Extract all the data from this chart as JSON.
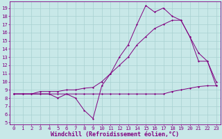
{
  "background_color": "#c8e8e8",
  "line_color": "#800080",
  "grid_color": "#a8d0d0",
  "xlabel": "Windchill (Refroidissement éolien,°C)",
  "xlabel_fontsize": 6,
  "tick_fontsize": 5.2,
  "xlim": [
    -0.5,
    23.5
  ],
  "ylim": [
    4.8,
    19.8
  ],
  "yticks": [
    5,
    6,
    7,
    8,
    9,
    10,
    11,
    12,
    13,
    14,
    15,
    16,
    17,
    18,
    19
  ],
  "xticks": [
    0,
    1,
    2,
    3,
    4,
    5,
    6,
    7,
    8,
    9,
    10,
    11,
    12,
    13,
    14,
    15,
    16,
    17,
    18,
    19,
    20,
    21,
    22,
    23
  ],
  "hours": [
    0,
    1,
    2,
    3,
    4,
    5,
    6,
    7,
    8,
    9,
    10,
    11,
    12,
    13,
    14,
    15,
    16,
    17,
    18,
    19,
    20,
    21,
    22,
    23
  ],
  "line_zigzag": [
    8.5,
    8.5,
    8.5,
    8.5,
    8.5,
    8.0,
    8.5,
    8.0,
    6.5,
    5.5,
    9.5,
    11.0,
    13.0,
    14.5,
    17.0,
    19.3,
    18.5,
    19.0,
    18.0,
    17.5,
    15.5,
    12.5,
    12.5,
    9.5
  ],
  "line_flat": [
    8.5,
    8.5,
    8.5,
    8.5,
    8.5,
    8.5,
    8.5,
    8.5,
    8.5,
    8.5,
    8.5,
    8.5,
    8.5,
    8.5,
    8.5,
    8.5,
    8.5,
    8.5,
    8.8,
    9.0,
    9.2,
    9.4,
    9.5,
    9.5
  ],
  "line_smooth": [
    8.5,
    8.5,
    8.5,
    8.8,
    8.8,
    8.8,
    9.0,
    9.0,
    9.2,
    9.3,
    10.0,
    11.0,
    12.0,
    13.0,
    14.5,
    15.5,
    16.5,
    17.0,
    17.5,
    17.5,
    15.5,
    13.5,
    12.5,
    10.0
  ]
}
